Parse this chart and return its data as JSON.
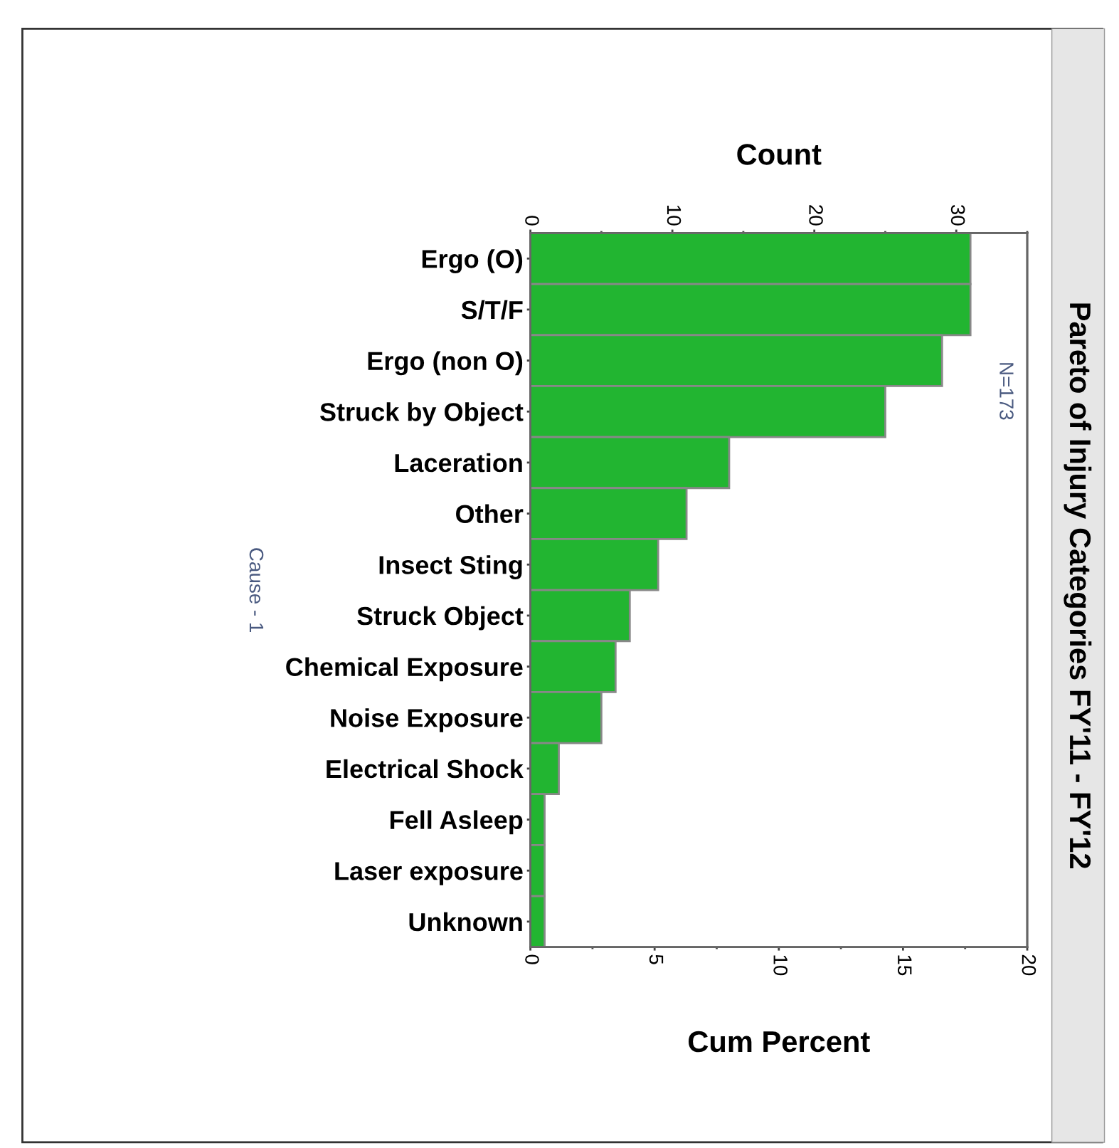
{
  "chart_data": {
    "type": "bar",
    "orientation": "horizontal",
    "title": "Pareto of Injury Categories FY'11 - FY'12",
    "xlabel": "Cum Percent",
    "x2label": "Count",
    "ylabel": "Cause - 1",
    "categories": [
      "Ergo (O)",
      "S/T/F",
      "Ergo (non O)",
      "Struck by Object",
      "Laceration",
      "Other",
      "Insect Sting",
      "Struck Object",
      "Chemical Exposure",
      "Noise Exposure",
      "Electrical Shock",
      "Fell Asleep",
      "Laser exposure",
      "Unknown"
    ],
    "series": [
      {
        "axis": "x2",
        "color": "#22b531",
        "values": [
          31,
          31,
          29,
          25,
          14,
          11,
          9,
          7,
          6,
          5,
          2,
          1,
          1,
          1
        ]
      }
    ],
    "xlim": [
      0,
      20
    ],
    "xticks": [
      0,
      5,
      10,
      15,
      20
    ],
    "x2lim": [
      0,
      35
    ],
    "x2ticks": [
      0,
      10,
      20,
      30
    ],
    "annotations": [
      "N=173"
    ],
    "grid": false,
    "legend": false
  }
}
